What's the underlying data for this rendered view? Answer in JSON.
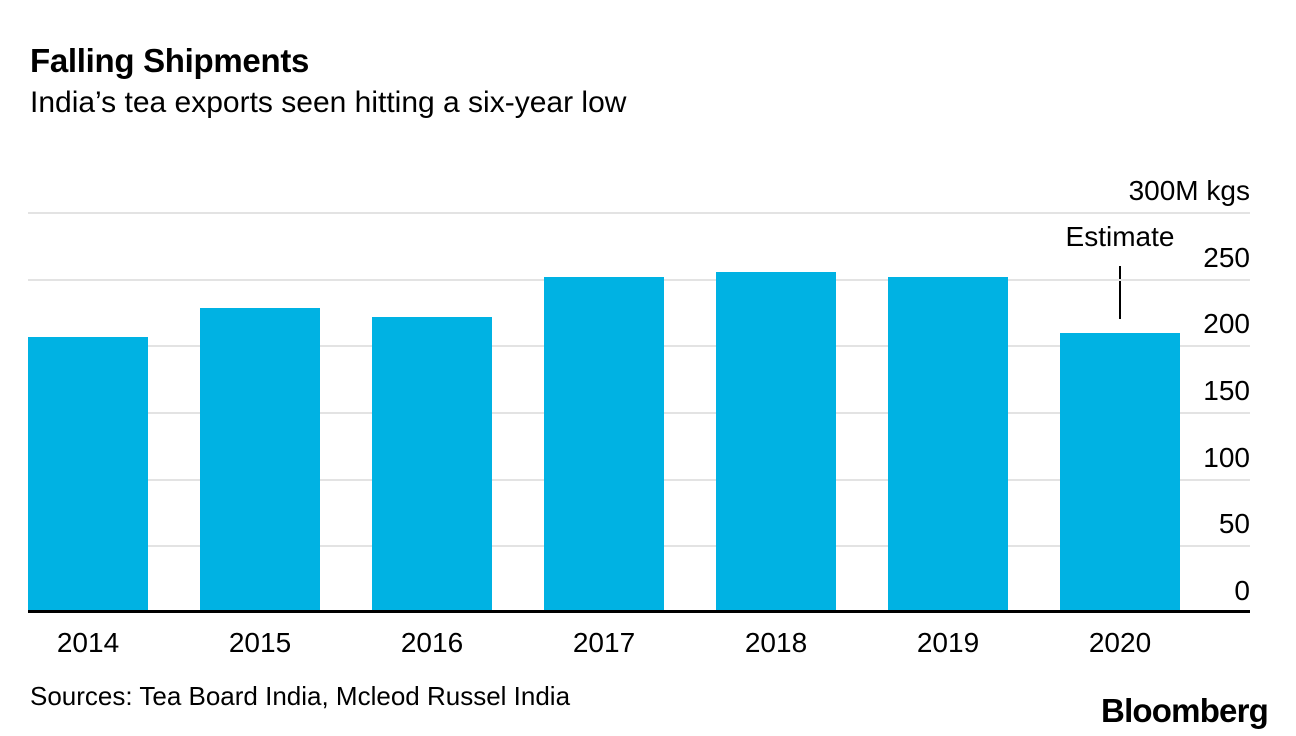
{
  "header": {
    "title": "Falling Shipments",
    "subtitle": "India’s tea exports seen hitting a six-year low"
  },
  "chart_data": {
    "type": "bar",
    "categories": [
      "2014",
      "2015",
      "2016",
      "2017",
      "2018",
      "2019",
      "2020"
    ],
    "values": [
      207,
      229,
      222,
      252,
      256,
      252,
      210
    ],
    "title": "Falling Shipments",
    "subtitle": "India’s tea exports seen hitting a six-year low",
    "xlabel": "",
    "ylabel": "",
    "unit_label": "300M kgs",
    "ylim": [
      0,
      300
    ],
    "y_ticks": [
      300,
      250,
      200,
      150,
      100,
      50,
      0
    ],
    "y_tick_labels": [
      "300M kgs",
      "250",
      "200",
      "150",
      "100",
      "50",
      "0"
    ],
    "grid": "horizontal",
    "legend_position": "none",
    "annotation": {
      "label": "Estimate",
      "target_category": "2020"
    },
    "colors": {
      "bar": "#00b2e3",
      "gridline": "#e3e3e3",
      "baseline": "#000000",
      "text": "#000000"
    }
  },
  "footer": {
    "sources": "Sources: Tea Board India, Mcleod Russel India",
    "brand": "Bloomberg"
  }
}
